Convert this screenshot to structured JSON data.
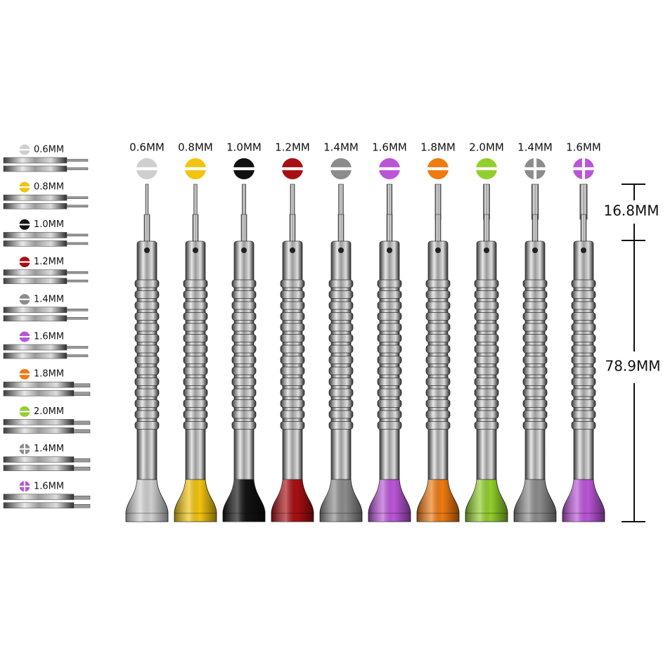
{
  "left_list": [
    {
      "label": "0.6MM",
      "color": "#cfcfcf",
      "tip": "slot"
    },
    {
      "label": "0.8MM",
      "color": "#f2c40f",
      "tip": "slot"
    },
    {
      "label": "1.0MM",
      "color": "#111111",
      "tip": "slot"
    },
    {
      "label": "1.2MM",
      "color": "#a80f12",
      "tip": "slot"
    },
    {
      "label": "1.4MM",
      "color": "#8c8c8c",
      "tip": "slot"
    },
    {
      "label": "1.6MM",
      "color": "#bb55d8",
      "tip": "slot"
    },
    {
      "label": "1.8MM",
      "color": "#f07a12",
      "tip": "slot"
    },
    {
      "label": "2.0MM",
      "color": "#92cf2c",
      "tip": "slot"
    },
    {
      "label": "1.4MM",
      "color": "#8c8c8c",
      "tip": "cross"
    },
    {
      "label": "1.6MM",
      "color": "#bb55d8",
      "tip": "cross"
    }
  ],
  "drivers": [
    {
      "label": "0.6MM",
      "color": "#cfcfcf",
      "tip": "slot"
    },
    {
      "label": "0.8MM",
      "color": "#f2c40f",
      "tip": "slot"
    },
    {
      "label": "1.0MM",
      "color": "#111111",
      "tip": "slot"
    },
    {
      "label": "1.2MM",
      "color": "#a80f12",
      "tip": "slot"
    },
    {
      "label": "1.4MM",
      "color": "#8c8c8c",
      "tip": "slot"
    },
    {
      "label": "1.6MM",
      "color": "#bb55d8",
      "tip": "slot"
    },
    {
      "label": "1.8MM",
      "color": "#f07a12",
      "tip": "slot"
    },
    {
      "label": "2.0MM",
      "color": "#92cf2c",
      "tip": "slot"
    },
    {
      "label": "1.4MM",
      "color": "#8c8c8c",
      "tip": "cross"
    },
    {
      "label": "1.6MM",
      "color": "#bb55d8",
      "tip": "cross"
    }
  ],
  "dimensions": {
    "tip_length": "16.8MM",
    "total_length": "78.9MM"
  }
}
